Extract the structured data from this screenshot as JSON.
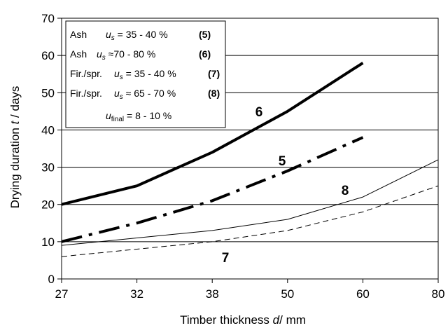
{
  "chart_data": {
    "type": "line",
    "categories": [
      "27",
      "32",
      "38",
      "50",
      "60",
      "80"
    ],
    "x_label_prefix": "Timber thickness ",
    "x_label_var": "d",
    "x_label_suffix": "/ mm",
    "y_label_prefix": "Drying duration ",
    "y_label_var": "t",
    "y_label_suffix": " / days",
    "ylim": [
      0,
      70
    ],
    "y_ticks": [
      "0",
      "10",
      "20",
      "30",
      "40",
      "50",
      "60",
      "70"
    ],
    "grid": "horizontal",
    "legend_position": "top-left",
    "series": [
      {
        "id": "5",
        "label": "5",
        "style": "dash-dot-thick",
        "values": [
          10,
          15,
          21,
          29,
          38,
          null
        ]
      },
      {
        "id": "6",
        "label": "6",
        "style": "solid-thick",
        "values": [
          20,
          25,
          34,
          45,
          58,
          null
        ]
      },
      {
        "id": "7",
        "label": "7",
        "style": "dashed-thin",
        "values": [
          6,
          8,
          10,
          13,
          18,
          25
        ]
      },
      {
        "id": "8",
        "label": "8",
        "style": "solid-thin",
        "values": [
          9,
          11,
          13,
          16,
          22,
          32
        ]
      }
    ],
    "legend": {
      "entries": [
        {
          "species": "Ash",
          "var": "u",
          "sub": "s",
          "range": " = 35 - 40 %",
          "tag": "(5)"
        },
        {
          "species": "Ash",
          "var": "u",
          "sub": "s",
          "range": " ≈70 - 80 %",
          "tag": "(6)"
        },
        {
          "species": "Fir./spr.",
          "var": "u",
          "sub": "s",
          "range": " = 35 - 40 %",
          "tag": "(7)"
        },
        {
          "species": "Fir./spr.",
          "var": "u",
          "sub": "s",
          "range": " ≈ 65 - 70 %",
          "tag": "(8)"
        }
      ],
      "final": {
        "var": "u",
        "sub": "final",
        "range": " = 8 - 10 %"
      }
    }
  }
}
